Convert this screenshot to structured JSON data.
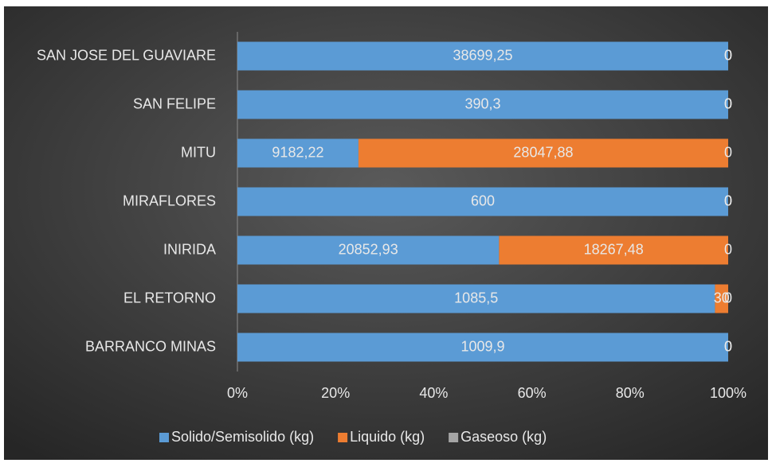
{
  "chart_data": {
    "type": "bar",
    "orientation": "horizontal",
    "stacked": "percent",
    "categories": [
      "SAN JOSE DEL GUAVIARE",
      "SAN FELIPE",
      "MITU",
      "MIRAFLORES",
      "INIRIDA",
      "EL RETORNO",
      "BARRANCO MINAS"
    ],
    "series": [
      {
        "name": "Solido/Semisolido (kg)",
        "color": "#5b9bd5",
        "values": [
          38699.25,
          390.3,
          9182.22,
          600,
          20852.93,
          1085.5,
          1009.9
        ],
        "value_labels": [
          "38699,25",
          "390,3",
          "9182,22",
          "600",
          "20852,93",
          "1085,5",
          "1009,9"
        ]
      },
      {
        "name": "Liquido (kg)",
        "color": "#ed7d31",
        "values": [
          0,
          0,
          28047.88,
          0,
          18267.48,
          30,
          0
        ],
        "value_labels": [
          "0",
          "0",
          "28047,88",
          "0",
          "18267,48",
          "30",
          "0"
        ]
      },
      {
        "name": "Gaseoso (kg)",
        "color": "#a5a5a5",
        "values": [
          0,
          0,
          0,
          0,
          0,
          0,
          0
        ],
        "value_labels": [
          "0",
          "0",
          "0",
          "0",
          "0",
          "0",
          "0"
        ]
      }
    ],
    "xlim": [
      0,
      100
    ],
    "xticks": [
      {
        "value": 0,
        "label": "0%"
      },
      {
        "value": 20,
        "label": "20%"
      },
      {
        "value": 40,
        "label": "40%"
      },
      {
        "value": 60,
        "label": "60%"
      },
      {
        "value": 80,
        "label": "80%"
      },
      {
        "value": 100,
        "label": "100%"
      }
    ],
    "legend": "bottom"
  }
}
